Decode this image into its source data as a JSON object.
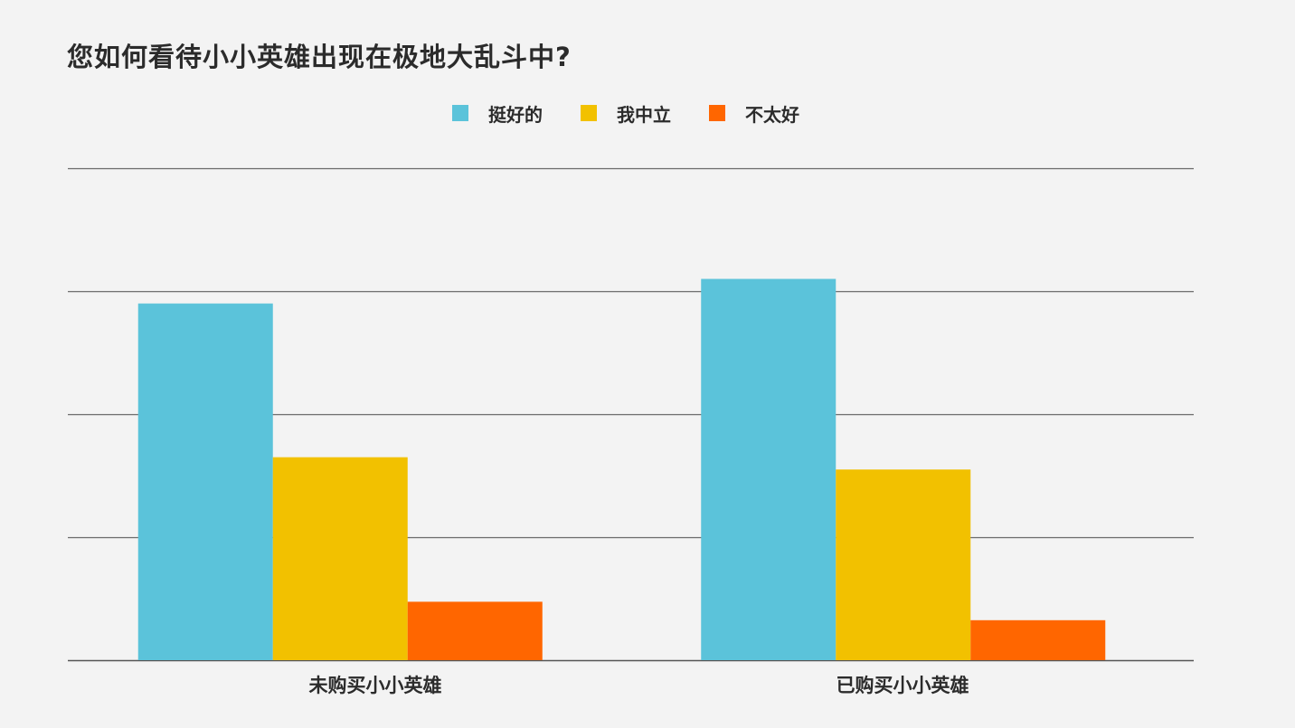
{
  "chart_data": {
    "type": "bar",
    "title": "您如何看待小小英雄出现在极地大乱斗中?",
    "xlabel": "",
    "ylabel": "",
    "categories": [
      "未购买小小英雄",
      "已购买小小英雄"
    ],
    "series": [
      {
        "name": "挺好的",
        "values": [
          58,
          62
        ]
      },
      {
        "name": "我中立",
        "values": [
          33,
          31
        ]
      },
      {
        "name": "不太好",
        "values": [
          9.5,
          6.5
        ]
      }
    ],
    "ylim": [
      0,
      80
    ],
    "grid": true,
    "legend_position": "top-center",
    "colors": [
      "#5bc3da",
      "#f2c100",
      "#ff6600"
    ]
  }
}
